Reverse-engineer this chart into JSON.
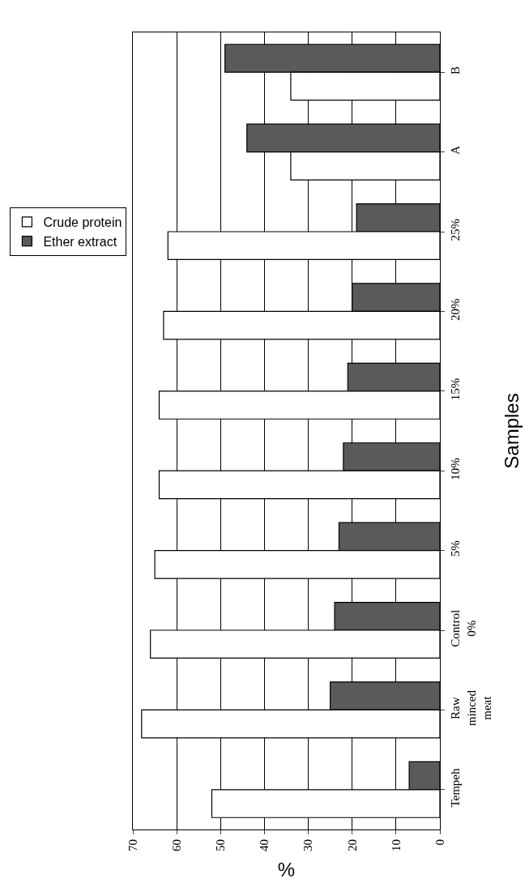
{
  "chart_data": {
    "type": "bar",
    "orientation": "horizontal",
    "ylabel": "Samples",
    "xlabel": "%",
    "categories": [
      "B",
      "A",
      "25%",
      "20%",
      "15%",
      "10%",
      "5%",
      "Control 0%",
      "Raw minced meat",
      "Tempeh"
    ],
    "series": [
      {
        "name": "Crude protein",
        "color": "#ffffff",
        "values": [
          34,
          34,
          62,
          63,
          64,
          64,
          65,
          66,
          68,
          52
        ]
      },
      {
        "name": "Ether extract",
        "color": "#5a5a5a",
        "values": [
          49,
          44,
          19,
          20,
          21,
          22,
          23,
          24,
          25,
          7
        ]
      }
    ],
    "xlim": [
      70,
      0
    ],
    "xticks": [
      0,
      10,
      20,
      30,
      40,
      50,
      60,
      70
    ],
    "grid": "x",
    "legend": "left"
  }
}
